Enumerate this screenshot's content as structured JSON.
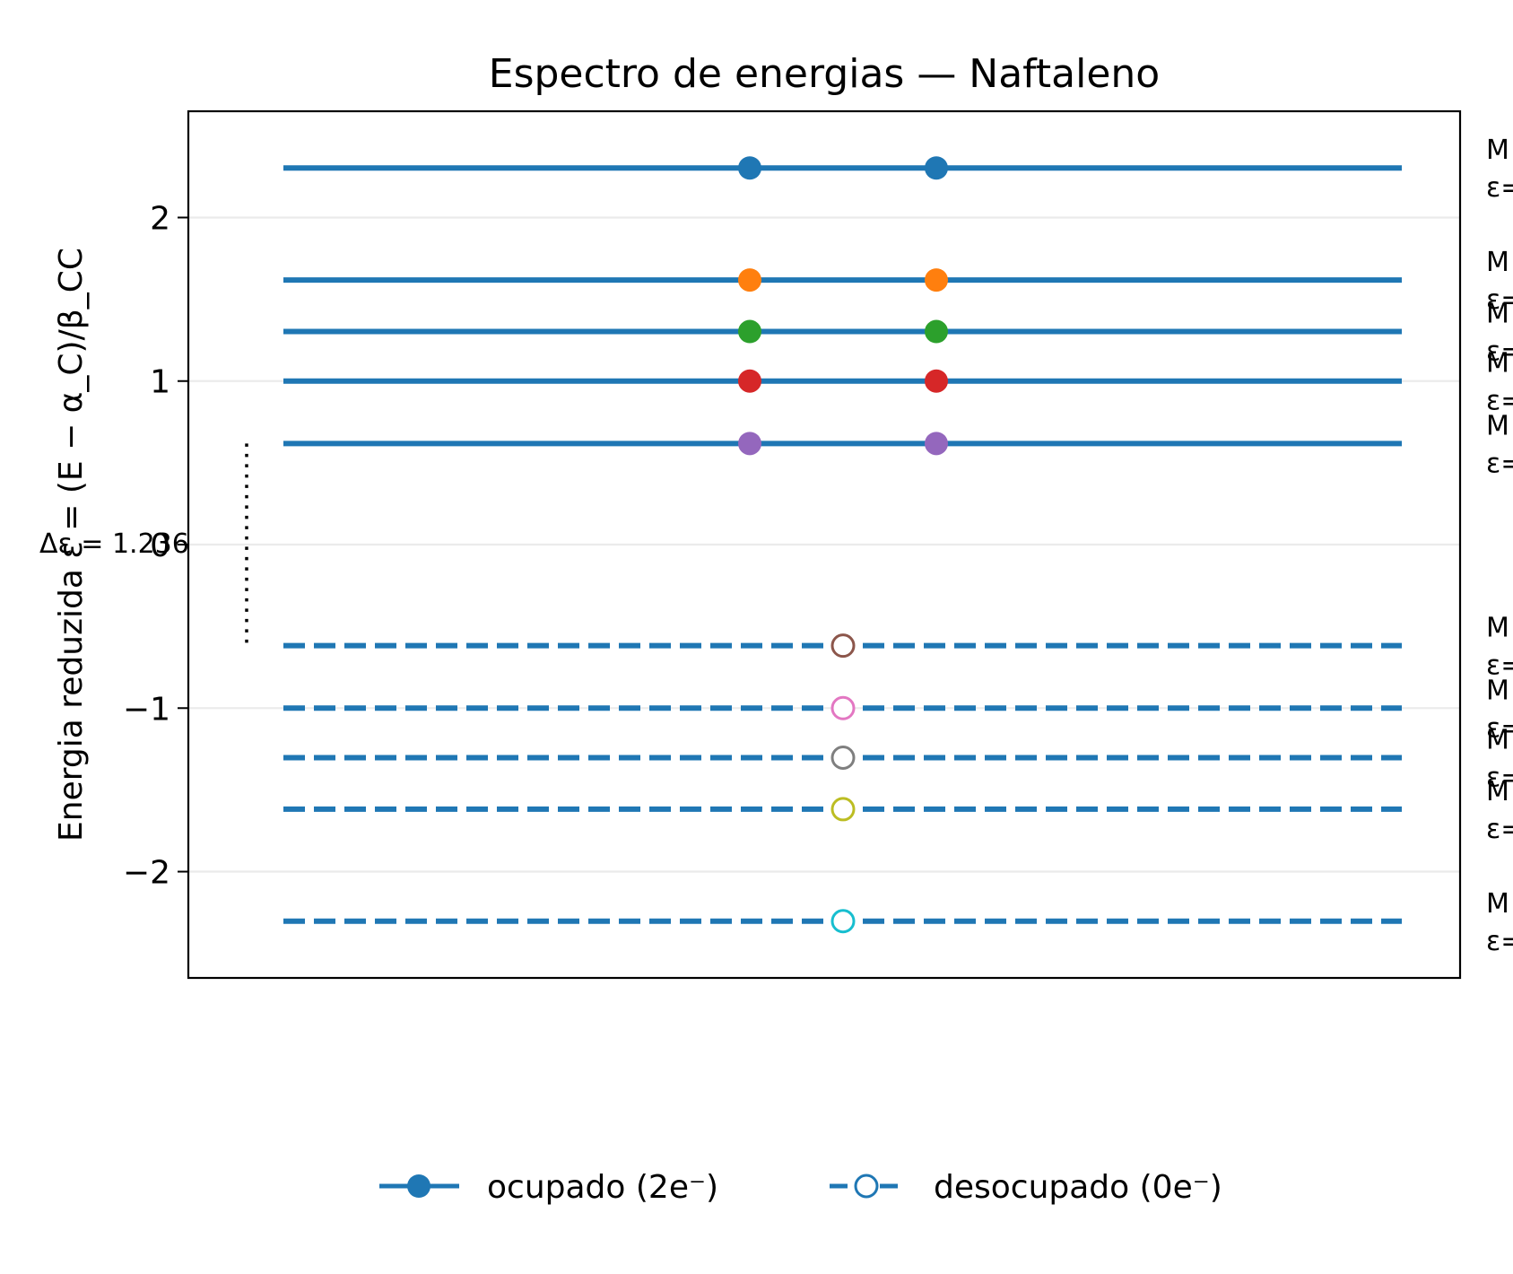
{
  "chart_data": {
    "type": "energy-level diagram",
    "title": "Espectro de energias — Naftaleno",
    "ylabel": "Energia reduzida ε = (E − α_C)/β_CC",
    "ylim": [
      -2.65,
      2.65
    ],
    "yticks": [
      2,
      1,
      0,
      -1,
      -2
    ],
    "ytick_labels": [
      "2",
      "1",
      "0",
      "−1",
      "−2"
    ],
    "grid": "horizontal",
    "legend_position": "bottom-center",
    "gap_annotation": {
      "text": "Δε = 1.236",
      "from": -0.618,
      "to": 0.618
    },
    "occupied": [
      {
        "energy": 2.303,
        "color": "#1f77b4",
        "label": [
          "M",
          "ε="
        ]
      },
      {
        "energy": 1.618,
        "color": "#ff7f0e",
        "label": [
          "M",
          "ε="
        ]
      },
      {
        "energy": 1.303,
        "color": "#2ca02c",
        "label": [
          "M",
          "ε="
        ]
      },
      {
        "energy": 1.0,
        "color": "#d62728",
        "label": [
          "M",
          "ε="
        ]
      },
      {
        "energy": 0.618,
        "color": "#9467bd",
        "label": [
          "M",
          "ε="
        ]
      }
    ],
    "unoccupied": [
      {
        "energy": -0.618,
        "color": "#8c564b",
        "label": [
          "M",
          "ε="
        ]
      },
      {
        "energy": -1.0,
        "color": "#e377c2",
        "label": [
          "M",
          "ε="
        ]
      },
      {
        "energy": -1.303,
        "color": "#7f7f7f",
        "label": [
          "M",
          "ε="
        ]
      },
      {
        "energy": -1.618,
        "color": "#bcbd22",
        "label": [
          "M",
          "ε="
        ]
      },
      {
        "energy": -2.303,
        "color": "#17becf",
        "label": [
          "M",
          "ε="
        ]
      }
    ],
    "line_color": "#1f77b4",
    "legend": [
      {
        "style": "occupied",
        "label": "ocupado (2e⁻)"
      },
      {
        "style": "unoccupied",
        "label": "desocupado (0e⁻)"
      }
    ]
  }
}
